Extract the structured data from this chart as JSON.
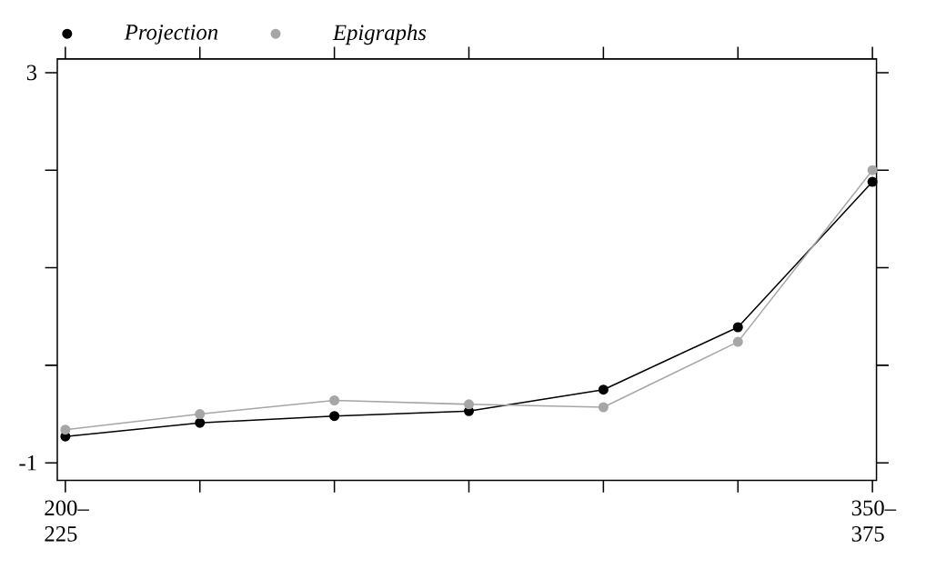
{
  "chart_data": {
    "type": "line",
    "categories": [
      "200–225",
      null,
      null,
      null,
      null,
      null,
      "350–375"
    ],
    "series": [
      {
        "name": "Projection",
        "color": "#000000",
        "values": [
          -0.73,
          -0.59,
          -0.52,
          -0.47,
          -0.25,
          0.39,
          1.88
        ]
      },
      {
        "name": "Epigraphs",
        "color": "#a6a6a6",
        "values": [
          -0.66,
          -0.5,
          -0.36,
          -0.4,
          -0.43,
          0.24,
          2.0
        ]
      }
    ],
    "ylim": [
      -1.18,
      3.14
    ],
    "yticks": [
      3,
      {
        "value": 2,
        "label": null
      },
      {
        "value": 1,
        "label": null
      },
      {
        "value": 0,
        "label": null
      },
      -1
    ],
    "legend": "top left",
    "marker": "circle",
    "line_style": "solid",
    "grid": false
  }
}
